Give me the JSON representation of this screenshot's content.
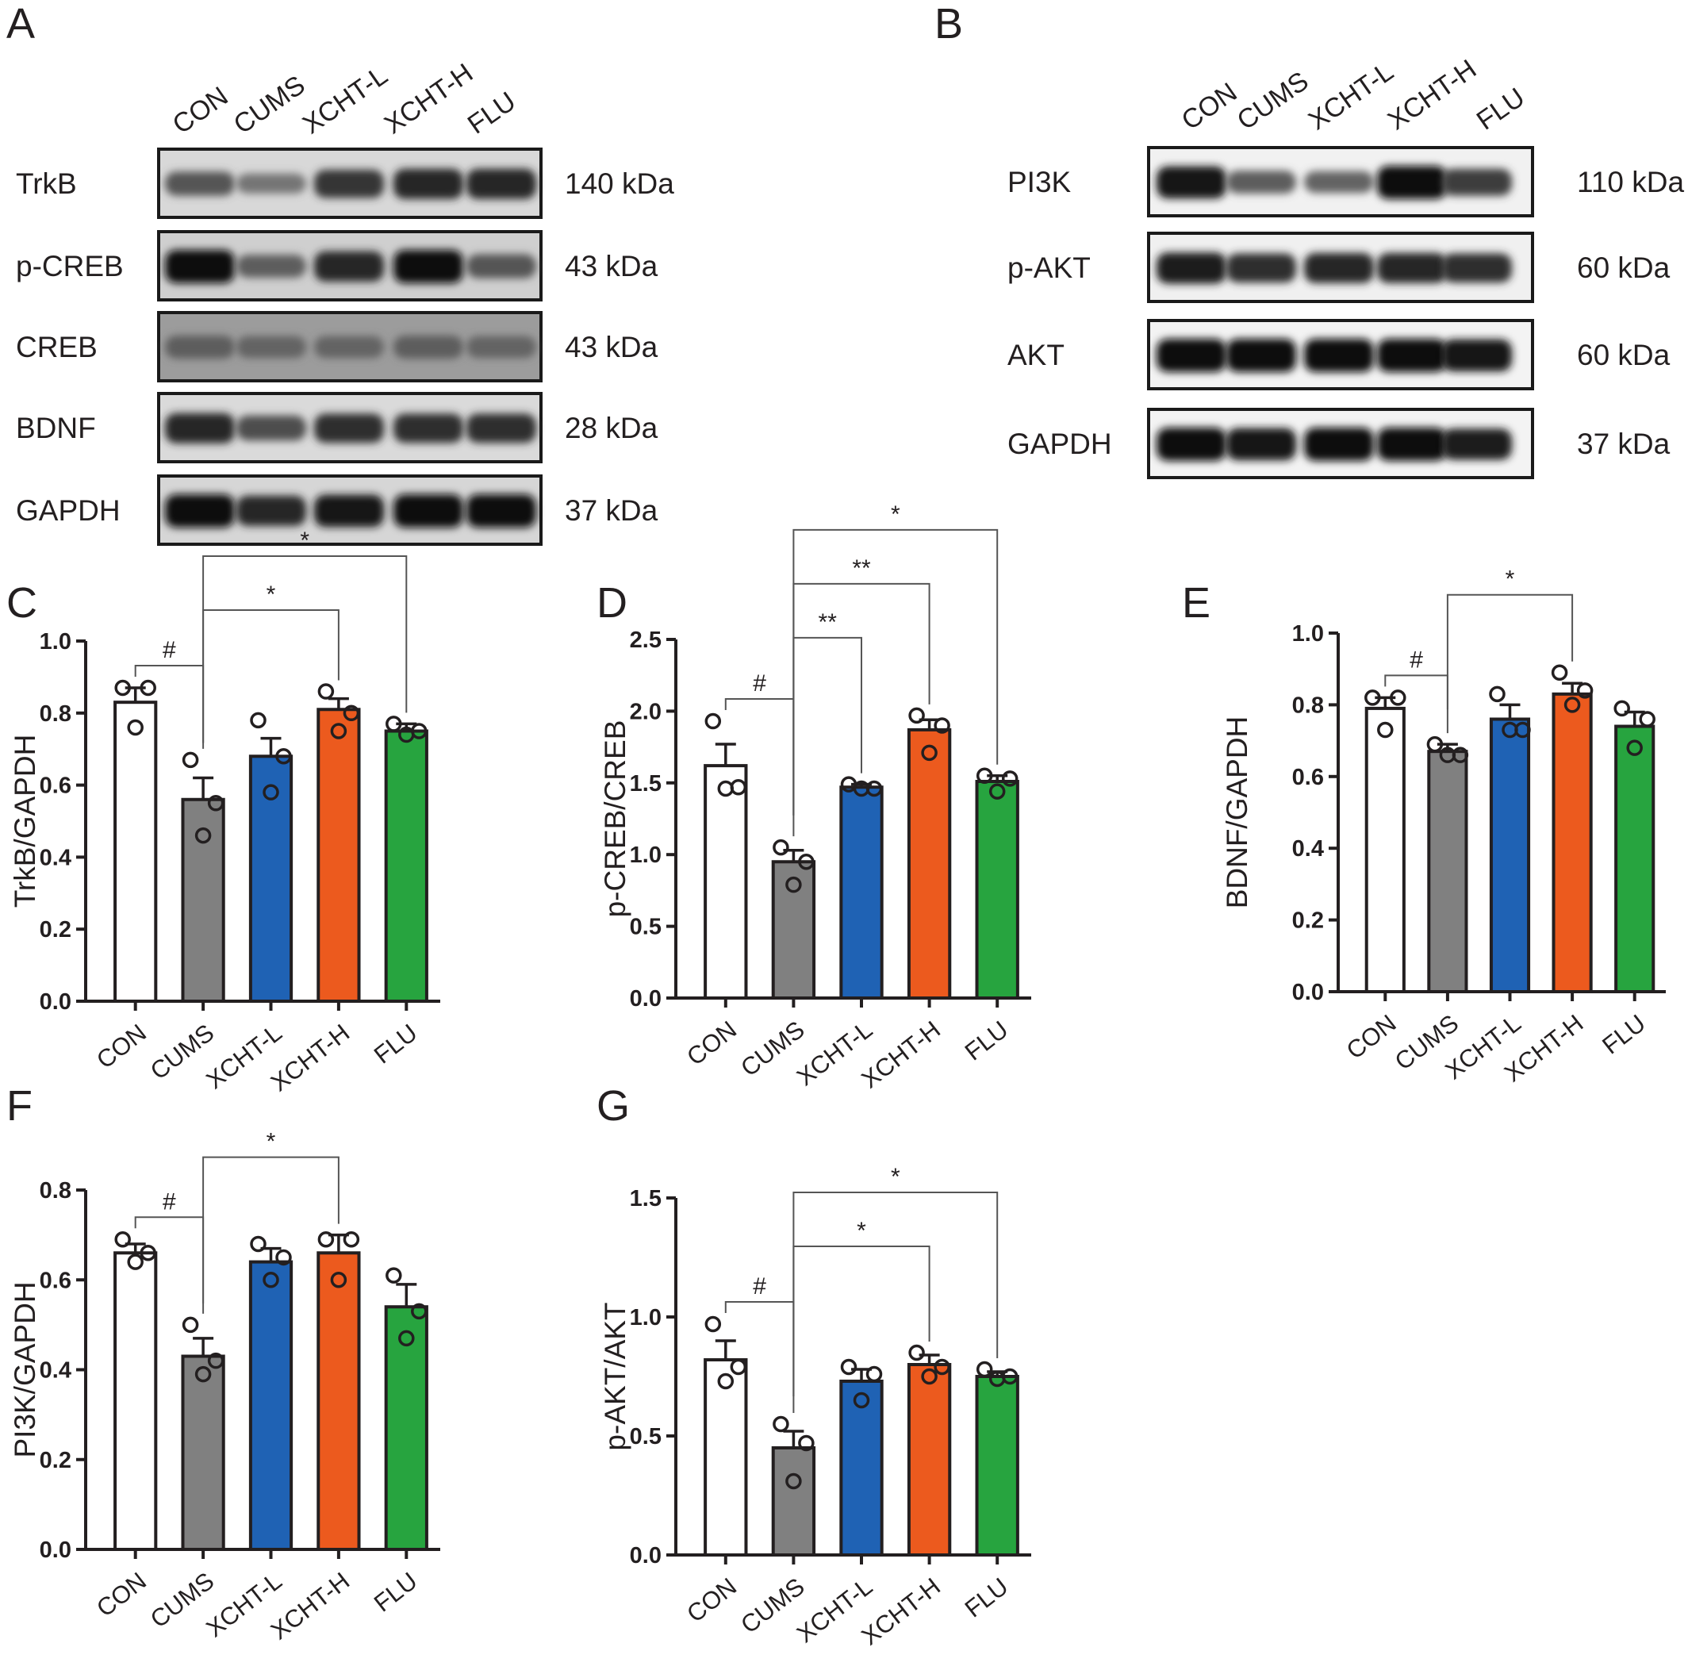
{
  "panels": {
    "A": "A",
    "B": "B",
    "C": "C",
    "D": "D",
    "E": "E",
    "F": "F",
    "G": "G"
  },
  "blots": {
    "A": {
      "lanes": [
        "CON",
        "CUMS",
        "XCHT-L",
        "XCHT-H",
        "FLU"
      ],
      "rows": [
        {
          "label": "TrkB",
          "kda": "140 kDa",
          "intensity": [
            0.55,
            0.35,
            0.75,
            0.85,
            0.85
          ],
          "bg": "#d8d8d8"
        },
        {
          "label": "p-CREB",
          "kda": "43 kDa",
          "intensity": [
            1.0,
            0.5,
            0.85,
            1.0,
            0.55
          ],
          "bg": "#cfcfcf"
        },
        {
          "label": "CREB",
          "kda": "43 kDa",
          "intensity": [
            0.5,
            0.45,
            0.45,
            0.5,
            0.45
          ],
          "bg": "#9c9c9c"
        },
        {
          "label": "BDNF",
          "kda": "28 kDa",
          "intensity": [
            0.85,
            0.6,
            0.8,
            0.8,
            0.8
          ],
          "bg": "#dadada"
        },
        {
          "label": "GAPDH",
          "kda": "37 kDa",
          "intensity": [
            1.0,
            0.85,
            0.95,
            1.0,
            1.0
          ],
          "bg": "#d6d6d6"
        }
      ]
    },
    "B": {
      "lanes": [
        "CON",
        "CUMS",
        "XCHT-L",
        "XCHT-H",
        "FLU"
      ],
      "rows": [
        {
          "label": "PI3K",
          "kda": "110 kDa",
          "intensity": [
            0.95,
            0.5,
            0.45,
            1.0,
            0.7
          ],
          "bg": "#f1f1f1"
        },
        {
          "label": "p-AKT",
          "kda": "60 kDa",
          "intensity": [
            0.9,
            0.8,
            0.85,
            0.85,
            0.8
          ],
          "bg": "#f0f0f0"
        },
        {
          "label": "AKT",
          "kda": "60 kDa",
          "intensity": [
            1.0,
            1.0,
            1.0,
            1.0,
            0.95
          ],
          "bg": "#f3f3f3"
        },
        {
          "label": "GAPDH",
          "kda": "37 kDa",
          "intensity": [
            1.0,
            0.95,
            1.0,
            1.0,
            0.9
          ],
          "bg": "#f3f3f3"
        }
      ]
    }
  },
  "chart_data": [
    {
      "panel": "C",
      "type": "bar",
      "ylabel": "TrkB/GAPDH",
      "categories": [
        "CON",
        "CUMS",
        "XCHT-L",
        "XCHT-H",
        "FLU"
      ],
      "values": [
        0.83,
        0.56,
        0.68,
        0.81,
        0.75
      ],
      "errors": [
        0.04,
        0.06,
        0.05,
        0.03,
        0.02
      ],
      "points": [
        [
          0.87,
          0.87,
          0.76
        ],
        [
          0.67,
          0.55,
          0.46
        ],
        [
          0.78,
          0.68,
          0.58
        ],
        [
          0.86,
          0.8,
          0.75
        ],
        [
          0.77,
          0.75,
          0.74
        ]
      ],
      "ylim": [
        0,
        1.0
      ],
      "ticks": [
        "0.0",
        "0.2",
        "0.4",
        "0.6",
        "0.8",
        "1.0"
      ],
      "tick_values": [
        0,
        0.2,
        0.4,
        0.6,
        0.8,
        1.0
      ],
      "colors": [
        "#ffffff",
        "#808080",
        "#1f62b4",
        "#ec5a1e",
        "#27a43f"
      ],
      "annotations": [
        {
          "from": 0,
          "to": 1,
          "label": "#",
          "level": 1
        },
        {
          "from": 1,
          "to": 3,
          "label": "*",
          "level": 2
        },
        {
          "from": 1,
          "to": 4,
          "label": "*",
          "level": 3
        }
      ]
    },
    {
      "panel": "D",
      "type": "bar",
      "ylabel": "p-CREB/CREB",
      "categories": [
        "CON",
        "CUMS",
        "XCHT-L",
        "XCHT-H",
        "FLU"
      ],
      "values": [
        1.62,
        0.95,
        1.47,
        1.87,
        1.51
      ],
      "errors": [
        0.15,
        0.08,
        0.02,
        0.07,
        0.04
      ],
      "points": [
        [
          1.93,
          1.47,
          1.46
        ],
        [
          1.05,
          0.95,
          0.79
        ],
        [
          1.49,
          1.46,
          1.46
        ],
        [
          1.97,
          1.9,
          1.71
        ],
        [
          1.55,
          1.53,
          1.44
        ]
      ],
      "ylim": [
        0,
        2.5
      ],
      "ticks": [
        "0.0",
        "0.5",
        "1.0",
        "1.5",
        "2.0",
        "2.5"
      ],
      "tick_values": [
        0,
        0.5,
        1.0,
        1.5,
        2.0,
        2.5
      ],
      "colors": [
        "#ffffff",
        "#808080",
        "#1f62b4",
        "#ec5a1e",
        "#27a43f"
      ],
      "annotations": [
        {
          "from": 0,
          "to": 1,
          "label": "#",
          "level": 1
        },
        {
          "from": 1,
          "to": 2,
          "label": "**",
          "level": 2
        },
        {
          "from": 1,
          "to": 3,
          "label": "**",
          "level": 3
        },
        {
          "from": 1,
          "to": 4,
          "label": "*",
          "level": 4
        }
      ]
    },
    {
      "panel": "E",
      "type": "bar",
      "ylabel": "BDNF/GAPDH",
      "categories": [
        "CON",
        "CUMS",
        "XCHT-L",
        "XCHT-H",
        "FLU"
      ],
      "values": [
        0.79,
        0.67,
        0.76,
        0.83,
        0.74
      ],
      "errors": [
        0.03,
        0.02,
        0.04,
        0.03,
        0.04
      ],
      "points": [
        [
          0.82,
          0.82,
          0.73
        ],
        [
          0.69,
          0.66,
          0.66
        ],
        [
          0.83,
          0.73,
          0.73
        ],
        [
          0.89,
          0.84,
          0.8
        ],
        [
          0.79,
          0.76,
          0.68
        ]
      ],
      "ylim": [
        0,
        1.0
      ],
      "ticks": [
        "0.0",
        "0.2",
        "0.4",
        "0.6",
        "0.8",
        "1.0"
      ],
      "tick_values": [
        0,
        0.2,
        0.4,
        0.6,
        0.8,
        1.0
      ],
      "colors": [
        "#ffffff",
        "#808080",
        "#1f62b4",
        "#ec5a1e",
        "#27a43f"
      ],
      "annotations": [
        {
          "from": 0,
          "to": 1,
          "label": "#",
          "level": 1
        },
        {
          "from": 1,
          "to": 3,
          "label": "*",
          "level": 2
        }
      ]
    },
    {
      "panel": "F",
      "type": "bar",
      "ylabel": "PI3K/GAPDH",
      "categories": [
        "CON",
        "CUMS",
        "XCHT-L",
        "XCHT-H",
        "FLU"
      ],
      "values": [
        0.66,
        0.43,
        0.64,
        0.66,
        0.54
      ],
      "errors": [
        0.02,
        0.04,
        0.03,
        0.04,
        0.05
      ],
      "points": [
        [
          0.69,
          0.66,
          0.64
        ],
        [
          0.5,
          0.42,
          0.39
        ],
        [
          0.68,
          0.65,
          0.6
        ],
        [
          0.69,
          0.69,
          0.6
        ],
        [
          0.61,
          0.53,
          0.47
        ]
      ],
      "ylim": [
        0,
        0.8
      ],
      "ticks": [
        "0.0",
        "0.2",
        "0.4",
        "0.6",
        "0.8"
      ],
      "tick_values": [
        0,
        0.2,
        0.4,
        0.6,
        0.8
      ],
      "colors": [
        "#ffffff",
        "#808080",
        "#1f62b4",
        "#ec5a1e",
        "#27a43f"
      ],
      "annotations": [
        {
          "from": 0,
          "to": 1,
          "label": "#",
          "level": 1
        },
        {
          "from": 1,
          "to": 3,
          "label": "*",
          "level": 2
        }
      ]
    },
    {
      "panel": "G",
      "type": "bar",
      "ylabel": "p-AKT/AKT",
      "categories": [
        "CON",
        "CUMS",
        "XCHT-L",
        "XCHT-H",
        "FLU"
      ],
      "values": [
        0.82,
        0.45,
        0.73,
        0.8,
        0.75
      ],
      "errors": [
        0.08,
        0.07,
        0.05,
        0.04,
        0.02
      ],
      "points": [
        [
          0.97,
          0.79,
          0.73
        ],
        [
          0.55,
          0.47,
          0.31
        ],
        [
          0.79,
          0.76,
          0.65
        ],
        [
          0.85,
          0.79,
          0.75
        ],
        [
          0.78,
          0.75,
          0.74
        ]
      ],
      "ylim": [
        0,
        1.5
      ],
      "ticks": [
        "0.0",
        "0.5",
        "1.0",
        "1.5"
      ],
      "tick_values": [
        0,
        0.5,
        1.0,
        1.5
      ],
      "colors": [
        "#ffffff",
        "#808080",
        "#1f62b4",
        "#ec5a1e",
        "#27a43f"
      ],
      "annotations": [
        {
          "from": 0,
          "to": 1,
          "label": "#",
          "level": 1
        },
        {
          "from": 1,
          "to": 3,
          "label": "*",
          "level": 2
        },
        {
          "from": 1,
          "to": 4,
          "label": "*",
          "level": 3
        }
      ]
    }
  ]
}
